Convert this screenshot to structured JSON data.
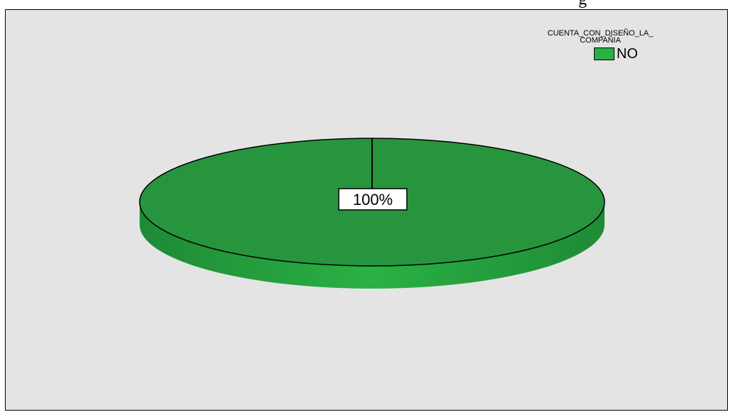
{
  "page": {
    "top_text": "g"
  },
  "chart_data": {
    "type": "pie",
    "variant": "3d",
    "legend_title": "CUENTA_CON_DISEÑO_LA_ COMPAÑIA",
    "legend_title_lines": [
      "CUENTA_CON_DISEÑO_LA_",
      "COMPAÑIA"
    ],
    "legend_position": "top-right",
    "slices": [
      {
        "label": "NO",
        "value": 100,
        "data_label": "100%",
        "color": "#2ab144"
      }
    ]
  },
  "colors": {
    "background": "#e4e4e4",
    "slice_top": "#27953e",
    "slice_side": "#2ab144",
    "outline": "#000000"
  }
}
